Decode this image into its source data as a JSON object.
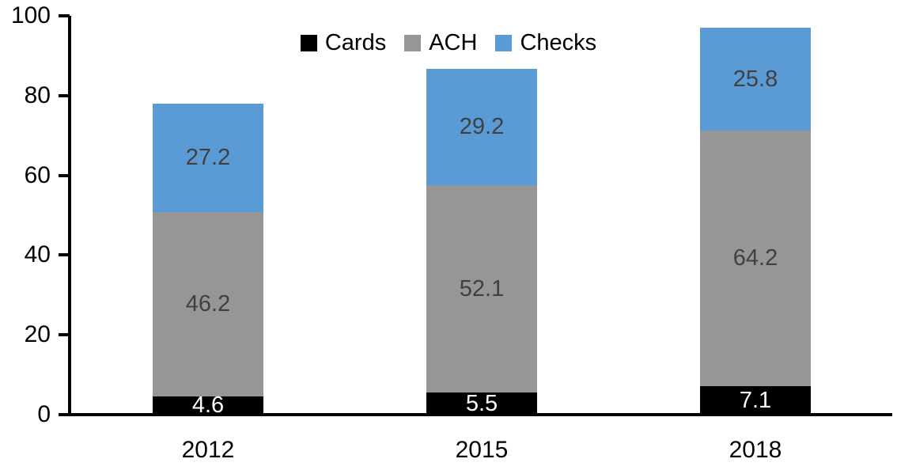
{
  "chart_data": {
    "type": "bar",
    "stacked": true,
    "title": "",
    "xlabel": "",
    "ylabel": "",
    "categories": [
      "2012",
      "2015",
      "2018"
    ],
    "series": [
      {
        "name": "Cards",
        "color": "#000000",
        "label_color": "#ffffff",
        "values": [
          4.6,
          5.5,
          7.1
        ]
      },
      {
        "name": "ACH",
        "color": "#969696",
        "label_color": "#404040",
        "values": [
          46.2,
          52.1,
          64.2
        ]
      },
      {
        "name": "Checks",
        "color": "#5b9bd5",
        "label_color": "#404040",
        "values": [
          27.2,
          29.2,
          25.8
        ]
      }
    ],
    "ylim": [
      0,
      100
    ],
    "yticks": [
      0,
      20,
      40,
      60,
      80,
      100
    ],
    "grid": false,
    "legend_position": "top-center",
    "axis_color": "#000000",
    "tick_label_color": "#000000"
  }
}
